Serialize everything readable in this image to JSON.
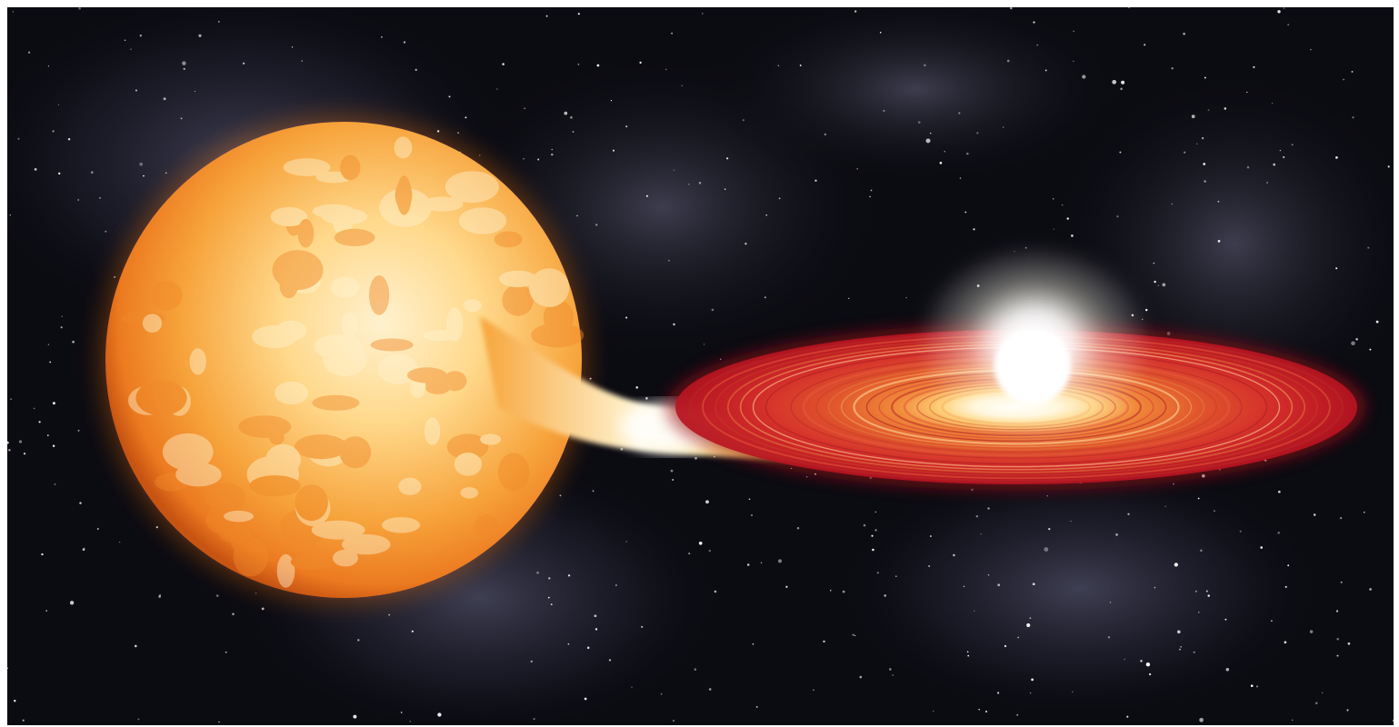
{
  "scene": {
    "subjects": [
      {
        "name": "donor-star",
        "color": "#f6b04a"
      },
      {
        "name": "mass-transfer-stream",
        "color": "#f7e7a0"
      },
      {
        "name": "accretion-disk",
        "color": "#d9232a"
      },
      {
        "name": "white-dwarf",
        "color": "#ffffff"
      }
    ],
    "background": {
      "color": "#0b0b12",
      "nebula_color": "#5a5a78"
    }
  }
}
